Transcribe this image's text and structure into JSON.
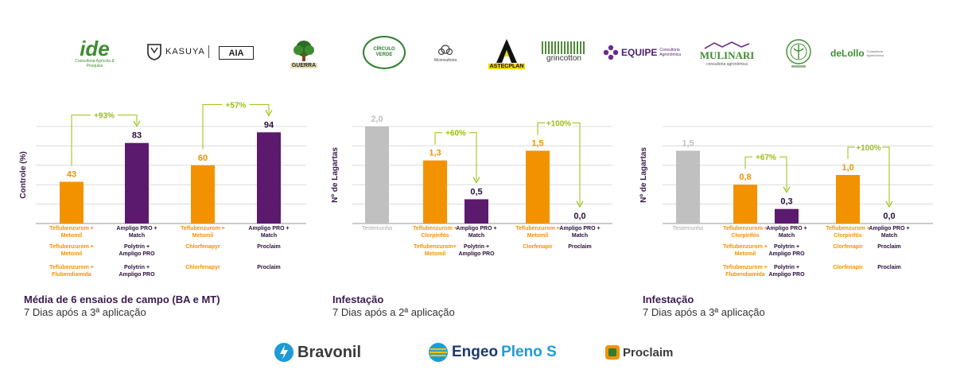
{
  "logos": {
    "ide": {
      "main": "ide",
      "sub": "Consultoria Agrícola & Pesquisa"
    },
    "kasuya": "KASUYA",
    "aia": "AIA",
    "guerra": "GUERRA",
    "circulo": "CÍRCULO VERDE",
    "mconsultoria": "Mconsultoria",
    "astecplan": "ASTECPLAN",
    "grincotton": "grincotton",
    "equipe": {
      "main": "EQUIPE",
      "sub": "Consultoria Agronômica"
    },
    "mulinari": {
      "main": "MULINARI",
      "sub": "consultoria agronômica"
    },
    "delollo": {
      "main": "deLollo",
      "sub": "Consultoria Agronômica"
    }
  },
  "brands": {
    "bravonil": "Bravonil",
    "engeo": "Engeo",
    "pleno": "Pleno S",
    "proclaim": "Proclaim"
  },
  "colors": {
    "orange": "#f39200",
    "purple": "#5b1a6e",
    "gray": "#c0c0c0",
    "green": "#97bf0d",
    "text_dark": "#3b1a4e"
  },
  "chart_data": [
    {
      "type": "bar",
      "ylabel": "Controle (%)",
      "categories": [
        "Teflubenzurom + Metomil",
        "Ampligo PRO + Match",
        "Teflubenzurom + Metomil",
        "Ampligo PRO + Match"
      ],
      "values": [
        43,
        83,
        60,
        94
      ],
      "value_labels": [
        "43",
        "83",
        "60",
        "94"
      ],
      "bar_colors": [
        "orange",
        "purple",
        "orange",
        "purple"
      ],
      "ylim": [
        0,
        100
      ],
      "gridlines": [
        20,
        40,
        60,
        80,
        100
      ],
      "annotations": [
        {
          "from": 0,
          "to": 1,
          "label": "+93%"
        },
        {
          "from": 2,
          "to": 3,
          "label": "+57%"
        }
      ],
      "extra_rows": [
        [
          "Teflubenzurom + Metomil",
          "Polytrin + Ampligo PRO",
          "Chlorfenapyr",
          "Proclaim"
        ],
        [
          "Teflubenzurom + Flubendiamida",
          "Polytrin + Ampligo PRO",
          "Chlorfenapyr",
          "Proclaim"
        ]
      ],
      "title": "Média de 6 ensaios de campo (BA e MT)",
      "subtitle": "7 Dias após a 3ª aplicação"
    },
    {
      "type": "bar",
      "ylabel": "Nº de Lagartas",
      "categories": [
        "Testemunha",
        "Teflubenzurom + Clorpirifós",
        "Ampligo PRO + Match",
        "Teflubenzurom + Metomil",
        "Ampligo PRO + Match"
      ],
      "values": [
        2.0,
        1.3,
        0.5,
        1.5,
        0.0
      ],
      "value_labels": [
        "2,0",
        "1,3",
        "0,5",
        "1,5",
        "0,0"
      ],
      "bar_colors": [
        "gray",
        "orange",
        "purple",
        "orange",
        "purple"
      ],
      "ylim": [
        0,
        2.0
      ],
      "gridlines": [
        0.4,
        0.8,
        1.2,
        1.6,
        2.0
      ],
      "annotations": [
        {
          "from": 1,
          "to": 2,
          "label": "+60%"
        },
        {
          "from": 3,
          "to": 4,
          "label": "+100%"
        }
      ],
      "extra_rows": [
        [
          "",
          "Teflubenzurom+ Metomil",
          "Polytrin + Ampligo PRO",
          "Clorfenapir",
          "Proclaim"
        ]
      ],
      "title": "Infestação",
      "subtitle": "7 Dias após a 2ª aplicação"
    },
    {
      "type": "bar",
      "ylabel": "Nº de Lagartas",
      "categories": [
        "Testemunha",
        "Teflubenzurom + Clorpirifós",
        "Ampligo PRO + Match",
        "Teflubenzurom + Clorpirifós",
        "Ampligo PRO + Match"
      ],
      "values": [
        1.5,
        0.8,
        0.3,
        1.0,
        0.0
      ],
      "value_labels": [
        "1,5",
        "0,8",
        "0,3",
        "1,0",
        "0,0"
      ],
      "bar_colors": [
        "gray",
        "orange",
        "purple",
        "orange",
        "purple"
      ],
      "ylim": [
        0,
        2.0
      ],
      "gridlines": [
        0.4,
        0.8,
        1.2,
        1.6,
        2.0
      ],
      "annotations": [
        {
          "from": 1,
          "to": 2,
          "label": "+67%"
        },
        {
          "from": 3,
          "to": 4,
          "label": "+100%"
        }
      ],
      "extra_rows": [
        [
          "",
          "Teflubenzurom + Metomil",
          "Polytrin + Ampligo PRO",
          "Clorfenapir",
          "Proclaim"
        ],
        [
          "",
          "Teflubenzurom + Flubendiamida",
          "Polytrin + Ampligo PRO",
          "Clorfenapir",
          "Proclaim"
        ]
      ],
      "title": "Infestação",
      "subtitle": "7 Dias após a 3ª aplicação"
    }
  ]
}
